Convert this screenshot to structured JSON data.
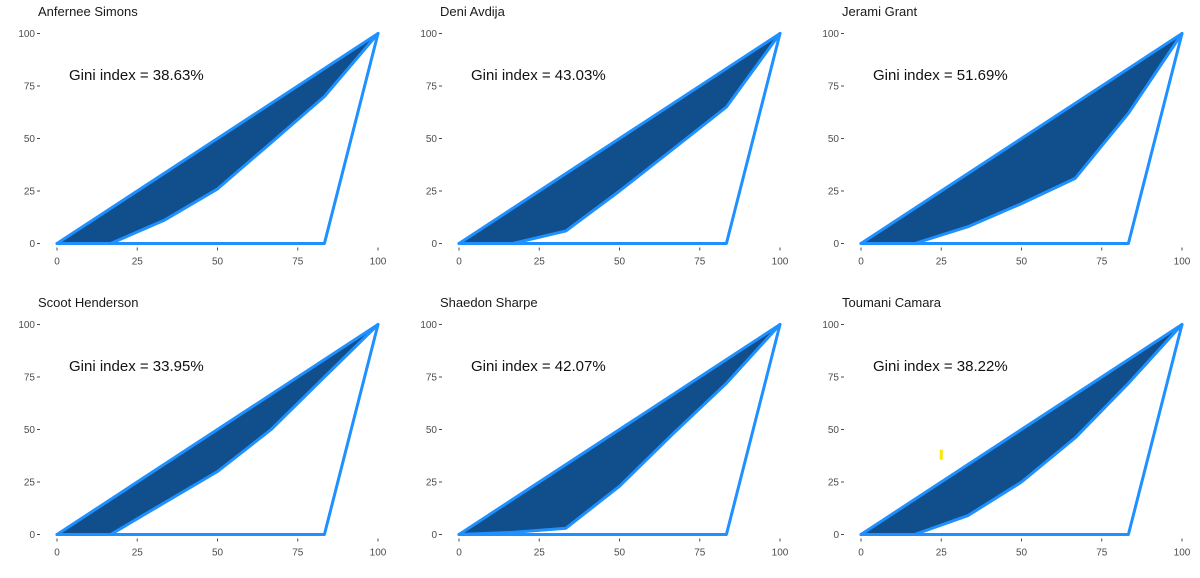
{
  "chart_data": [
    {
      "type": "area",
      "title": "Anfernee Simons",
      "annotation": "Gini index = 38.63%",
      "xlim": [
        0,
        100
      ],
      "ylim": [
        0,
        100
      ],
      "xticks": [
        0,
        25,
        50,
        75,
        100
      ],
      "yticks": [
        0,
        25,
        50,
        75,
        100
      ],
      "grid": false,
      "lorenz_curve": {
        "x": [
          0,
          16.7,
          33.3,
          50,
          66.7,
          83.3,
          100
        ],
        "y": [
          0,
          0,
          11,
          26,
          48,
          70,
          100
        ]
      },
      "perfect_inequality": {
        "x": [
          0,
          83.3,
          100
        ],
        "y": [
          0,
          0,
          100
        ]
      }
    },
    {
      "type": "area",
      "title": "Deni Avdija",
      "annotation": "Gini index = 43.03%",
      "xlim": [
        0,
        100
      ],
      "ylim": [
        0,
        100
      ],
      "xticks": [
        0,
        25,
        50,
        75,
        100
      ],
      "yticks": [
        0,
        25,
        50,
        75,
        100
      ],
      "grid": false,
      "lorenz_curve": {
        "x": [
          0,
          16.7,
          33.3,
          50,
          66.7,
          83.3,
          100
        ],
        "y": [
          0,
          0,
          6,
          25,
          45,
          65,
          100
        ]
      },
      "perfect_inequality": {
        "x": [
          0,
          83.3,
          100
        ],
        "y": [
          0,
          0,
          100
        ]
      }
    },
    {
      "type": "area",
      "title": "Jerami Grant",
      "annotation": "Gini index = 51.69%",
      "xlim": [
        0,
        100
      ],
      "ylim": [
        0,
        100
      ],
      "xticks": [
        0,
        25,
        50,
        75,
        100
      ],
      "yticks": [
        0,
        25,
        50,
        75,
        100
      ],
      "grid": false,
      "lorenz_curve": {
        "x": [
          0,
          16.7,
          33.3,
          50,
          66.7,
          83.3,
          100
        ],
        "y": [
          0,
          0,
          8,
          19,
          31,
          62,
          100
        ]
      },
      "perfect_inequality": {
        "x": [
          0,
          83.3,
          100
        ],
        "y": [
          0,
          0,
          100
        ]
      }
    },
    {
      "type": "area",
      "title": "Scoot Henderson",
      "annotation": "Gini index = 33.95%",
      "xlim": [
        0,
        100
      ],
      "ylim": [
        0,
        100
      ],
      "xticks": [
        0,
        25,
        50,
        75,
        100
      ],
      "yticks": [
        0,
        25,
        50,
        75,
        100
      ],
      "grid": false,
      "lorenz_curve": {
        "x": [
          0,
          16.7,
          33.3,
          50,
          66.7,
          83.3,
          100
        ],
        "y": [
          0,
          0,
          15,
          30,
          50,
          75,
          100
        ]
      },
      "perfect_inequality": {
        "x": [
          0,
          83.3,
          100
        ],
        "y": [
          0,
          0,
          100
        ]
      }
    },
    {
      "type": "area",
      "title": "Shaedon Sharpe",
      "annotation": "Gini index = 42.07%",
      "xlim": [
        0,
        100
      ],
      "ylim": [
        0,
        100
      ],
      "xticks": [
        0,
        25,
        50,
        75,
        100
      ],
      "yticks": [
        0,
        25,
        50,
        75,
        100
      ],
      "grid": false,
      "lorenz_curve": {
        "x": [
          0,
          16.7,
          33.3,
          50,
          66.7,
          83.3,
          100
        ],
        "y": [
          0,
          1,
          3,
          23,
          48,
          72,
          100
        ]
      },
      "perfect_inequality": {
        "x": [
          0,
          83.3,
          100
        ],
        "y": [
          0,
          0,
          100
        ]
      }
    },
    {
      "type": "area",
      "title": "Toumani Camara",
      "annotation": "Gini index = 38.22%",
      "xlim": [
        0,
        100
      ],
      "ylim": [
        0,
        100
      ],
      "xticks": [
        0,
        25,
        50,
        75,
        100
      ],
      "yticks": [
        0,
        25,
        50,
        75,
        100
      ],
      "grid": false,
      "lorenz_curve": {
        "x": [
          0,
          16.7,
          33.3,
          50,
          66.7,
          83.3,
          100
        ],
        "y": [
          0,
          0,
          9,
          25,
          46,
          72,
          100
        ]
      },
      "perfect_inequality": {
        "x": [
          0,
          83.3,
          100
        ],
        "y": [
          0,
          0,
          100
        ]
      },
      "marker": {
        "x": 25,
        "y": 38,
        "color": "#ffe600"
      }
    }
  ],
  "colors": {
    "line": "#1e90ff",
    "fill": "#114e8c",
    "axis": "#4d4d4d"
  }
}
